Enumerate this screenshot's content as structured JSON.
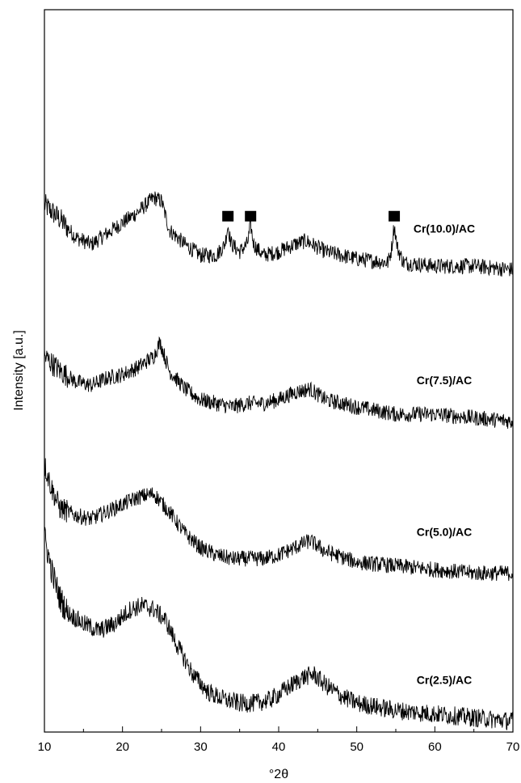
{
  "chart_data": {
    "type": "line",
    "xlabel": "°2θ",
    "ylabel": "Intensity [a.u.]",
    "xlim": [
      10,
      70
    ],
    "ticks": [
      "10",
      "20",
      "30",
      "40",
      "50",
      "60",
      "70"
    ],
    "line_color": "#000000",
    "grid": false,
    "legend": "none",
    "marker_symbol": "■",
    "series": [
      {
        "name": "Cr(10.0)/AC",
        "x": [
          10,
          12,
          14,
          16,
          18,
          20,
          22,
          24,
          25,
          26,
          28,
          30,
          32,
          33.5,
          35,
          36.4,
          38,
          40,
          42,
          43.5,
          46,
          50,
          54,
          54.8,
          56,
          60,
          65,
          70
        ],
        "y": [
          0.73,
          0.71,
          0.685,
          0.675,
          0.69,
          0.705,
          0.72,
          0.74,
          0.735,
          0.695,
          0.675,
          0.66,
          0.66,
          0.68,
          0.665,
          0.68,
          0.66,
          0.665,
          0.675,
          0.68,
          0.665,
          0.655,
          0.65,
          0.68,
          0.65,
          0.645,
          0.645,
          0.64
        ],
        "peaks": [
          33.5,
          36.4,
          54.8
        ]
      },
      {
        "name": "Cr(7.5)/AC",
        "x": [
          10,
          12,
          14,
          16,
          18,
          20,
          22,
          24,
          24.8,
          26,
          28,
          30,
          32,
          34,
          36,
          38,
          40,
          42,
          44,
          46,
          50,
          55,
          60,
          65,
          70
        ],
        "y": [
          0.52,
          0.5,
          0.485,
          0.48,
          0.49,
          0.495,
          0.505,
          0.52,
          0.54,
          0.5,
          0.475,
          0.46,
          0.455,
          0.45,
          0.455,
          0.455,
          0.46,
          0.47,
          0.475,
          0.46,
          0.45,
          0.44,
          0.44,
          0.435,
          0.43
        ],
        "peaks": []
      },
      {
        "name": "Cr(5.0)/AC",
        "x": [
          10,
          11,
          12,
          14,
          16,
          18,
          20,
          22,
          24,
          26,
          28,
          30,
          32,
          34,
          36,
          38,
          40,
          42,
          44,
          46,
          50,
          55,
          60,
          65,
          70
        ],
        "y": [
          0.37,
          0.335,
          0.31,
          0.3,
          0.295,
          0.305,
          0.315,
          0.325,
          0.33,
          0.305,
          0.275,
          0.255,
          0.245,
          0.24,
          0.24,
          0.24,
          0.245,
          0.255,
          0.265,
          0.25,
          0.235,
          0.23,
          0.225,
          0.22,
          0.22
        ],
        "peaks": []
      },
      {
        "name": "Cr(2.5)/AC",
        "x": [
          10,
          11,
          12,
          13,
          15,
          17,
          19,
          21,
          22.5,
          24,
          25.5,
          27,
          29,
          31,
          33,
          35,
          37,
          39,
          41,
          43,
          44.5,
          46,
          48,
          50,
          55,
          60,
          65,
          70
        ],
        "y": [
          0.27,
          0.22,
          0.185,
          0.165,
          0.15,
          0.14,
          0.15,
          0.17,
          0.175,
          0.17,
          0.155,
          0.12,
          0.08,
          0.055,
          0.045,
          0.04,
          0.04,
          0.045,
          0.06,
          0.075,
          0.08,
          0.065,
          0.05,
          0.04,
          0.03,
          0.025,
          0.02,
          0.015
        ],
        "peaks": []
      }
    ]
  }
}
